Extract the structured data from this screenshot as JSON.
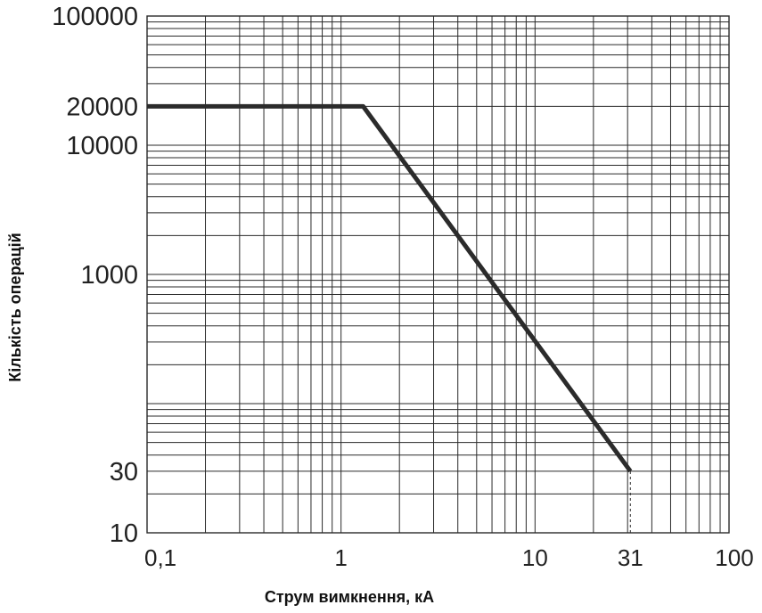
{
  "chart_data": {
    "type": "line",
    "xlabel": "Струм вимкнення, кА",
    "ylabel": "Кількість операцій",
    "x_scale": "log",
    "y_scale": "log",
    "xlim": [
      0.1,
      100
    ],
    "ylim": [
      10,
      100000
    ],
    "grid": true,
    "x_ticks": [
      {
        "value": 0.1,
        "label": "0,1"
      },
      {
        "value": 1,
        "label": "1"
      },
      {
        "value": 10,
        "label": "10"
      },
      {
        "value": 31,
        "label": "31"
      },
      {
        "value": 100,
        "label": "100"
      }
    ],
    "y_ticks": [
      {
        "value": 10,
        "label": "10"
      },
      {
        "value": 30,
        "label": "30"
      },
      {
        "value": 1000,
        "label": "1000"
      },
      {
        "value": 10000,
        "label": "10000"
      },
      {
        "value": 20000,
        "label": "20000"
      },
      {
        "value": 100000,
        "label": "100000"
      }
    ],
    "series": [
      {
        "x": [
          0.1,
          1.3,
          31
        ],
        "y": [
          20000,
          20000,
          30
        ]
      }
    ],
    "reference_lines": [
      {
        "orientation": "vertical",
        "x": 31,
        "y_from": 10,
        "y_to": 30,
        "style": "dashed"
      }
    ]
  }
}
